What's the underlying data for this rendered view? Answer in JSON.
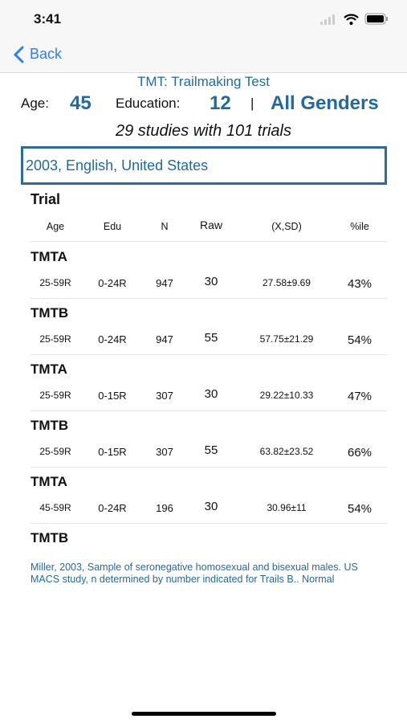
{
  "status_bar": {
    "time": "3:41"
  },
  "nav": {
    "back": "Back"
  },
  "header": {
    "title": "TMT: Trailmaking Test",
    "age_label": "Age:",
    "age": "45",
    "education_label": "Education:",
    "education": "12",
    "separator": "|",
    "gender": "All Genders",
    "summary": "29 studies with 101 trials"
  },
  "selector": "2003, English, United States",
  "table": {
    "title": "Trial",
    "columns": [
      "Age",
      "Edu",
      "N",
      "Raw",
      "(X,SD)",
      "%ile"
    ],
    "trials": [
      {
        "name": "TMTA",
        "row": [
          "25-59R",
          "0-24R",
          "947",
          "30",
          "27.58±9.69",
          "43%"
        ]
      },
      {
        "name": "TMTB",
        "row": [
          "25-59R",
          "0-24R",
          "947",
          "55",
          "57.75±21.29",
          "54%"
        ]
      },
      {
        "name": "TMTA",
        "row": [
          "25-59R",
          "0-15R",
          "307",
          "30",
          "29.22±10.33",
          "47%"
        ]
      },
      {
        "name": "TMTB",
        "row": [
          "25-59R",
          "0-15R",
          "307",
          "55",
          "63.82±23.52",
          "66%"
        ]
      },
      {
        "name": "TMTA",
        "row": [
          "45-59R",
          "0-24R",
          "196",
          "30",
          "30.96±11",
          "54%"
        ]
      },
      {
        "name": "TMTB"
      }
    ]
  },
  "footnote": "Miller, 2003, Sample of seronegative homosexual and bisexual males. US MACS study, n determined by number indicated for Trails B.. Normal"
}
